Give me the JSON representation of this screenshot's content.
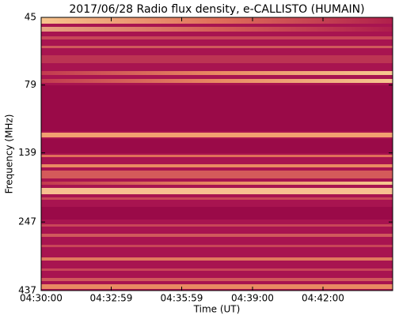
{
  "chart_data": {
    "type": "spectrogram",
    "title": "2017/06/28  Radio flux density, e-CALLISTO (HUMAIN)",
    "xlabel": "Time (UT)",
    "ylabel": "Frequency (MHz)",
    "xlim": [
      0,
      898
    ],
    "xticks": [
      {
        "value": 0,
        "label": "04:30:00"
      },
      {
        "value": 179,
        "label": "04:32:59"
      },
      {
        "value": 359,
        "label": "04:35:59"
      },
      {
        "value": 540,
        "label": "04:39:00"
      },
      {
        "value": 720,
        "label": "04:42:00"
      }
    ],
    "ylim": [
      45,
      437
    ],
    "yticks": [
      45,
      79,
      139,
      247,
      437
    ],
    "ylog": true,
    "yinverted": true
  }
}
